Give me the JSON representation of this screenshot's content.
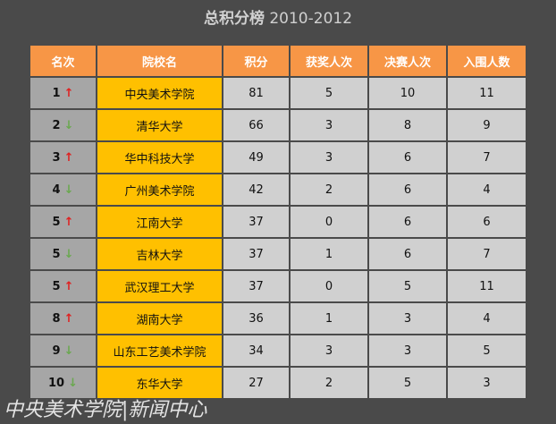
{
  "title": {
    "main": "总积分榜",
    "years": "2010-2012"
  },
  "table": {
    "header": [
      "名次",
      "院校名",
      "积分",
      "获奖人次",
      "决赛人次",
      "入围人数"
    ],
    "rows": [
      [
        1,
        "↑",
        "中央美术学院",
        81,
        5,
        10,
        11
      ],
      [
        2,
        "↓",
        "清华大学",
        66,
        3,
        8,
        9
      ],
      [
        3,
        "↑",
        "华中科技大学",
        49,
        3,
        6,
        7
      ],
      [
        4,
        "↓",
        "广州美术学院",
        42,
        2,
        6,
        4
      ],
      [
        5,
        "↑",
        "江南大学",
        37,
        0,
        6,
        6
      ],
      [
        5,
        "↓",
        "吉林大学",
        37,
        1,
        6,
        7
      ],
      [
        5,
        "↑",
        "武汉理工大学",
        37,
        0,
        5,
        11
      ],
      [
        8,
        "↑",
        "湖南大学",
        36,
        1,
        3,
        4
      ],
      [
        9,
        "↓",
        "山东工艺美术学院",
        34,
        3,
        3,
        5
      ],
      [
        10,
        "↓",
        "东华大学",
        27,
        2,
        5,
        3
      ]
    ]
  },
  "watermark": "中央美术学院|新闻中心"
}
